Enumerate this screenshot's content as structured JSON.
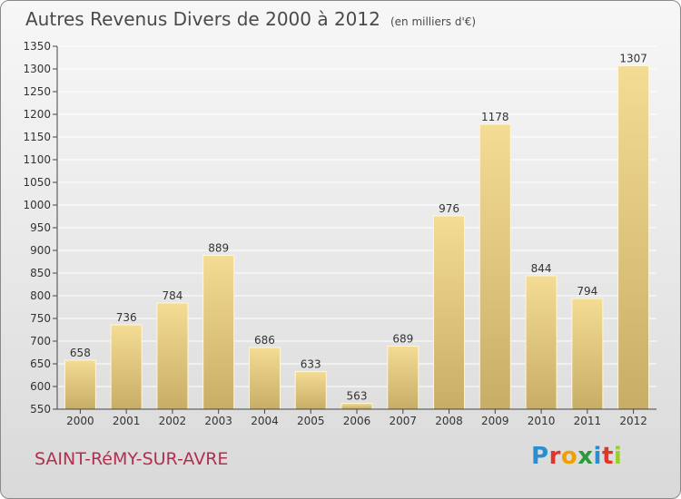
{
  "title": "Autres Revenus Divers de 2000 à 2012",
  "unit_note": "(en milliers d'€)",
  "city": "SAINT-RéMY-SUR-AVRE",
  "logo": {
    "text": "Proxiti",
    "letter_colors": [
      "#2a8fd0",
      "#e0352b",
      "#f0a000",
      "#2a9a3a",
      "#2a8fd0",
      "#e0352b",
      "#9acd32"
    ]
  },
  "colors": {
    "bar_top": "#f4dc94",
    "bar_bottom": "#c8ad66",
    "axis": "#444444",
    "grid": "#ffffff",
    "city": "#b0304e"
  },
  "chart_data": {
    "type": "bar",
    "title": "Autres Revenus Divers de 2000 à 2012",
    "categories": [
      "2000",
      "2001",
      "2002",
      "2003",
      "2004",
      "2005",
      "2006",
      "2007",
      "2008",
      "2009",
      "2010",
      "2011",
      "2012"
    ],
    "values": [
      658,
      736,
      784,
      889,
      686,
      633,
      563,
      689,
      976,
      1178,
      844,
      794,
      1307
    ],
    "ylim": [
      550,
      1350
    ],
    "yticks": [
      550,
      600,
      650,
      700,
      750,
      800,
      850,
      900,
      950,
      1000,
      1050,
      1100,
      1150,
      1200,
      1250,
      1300,
      1350
    ],
    "grid": true,
    "xlabel": "",
    "ylabel": ""
  }
}
